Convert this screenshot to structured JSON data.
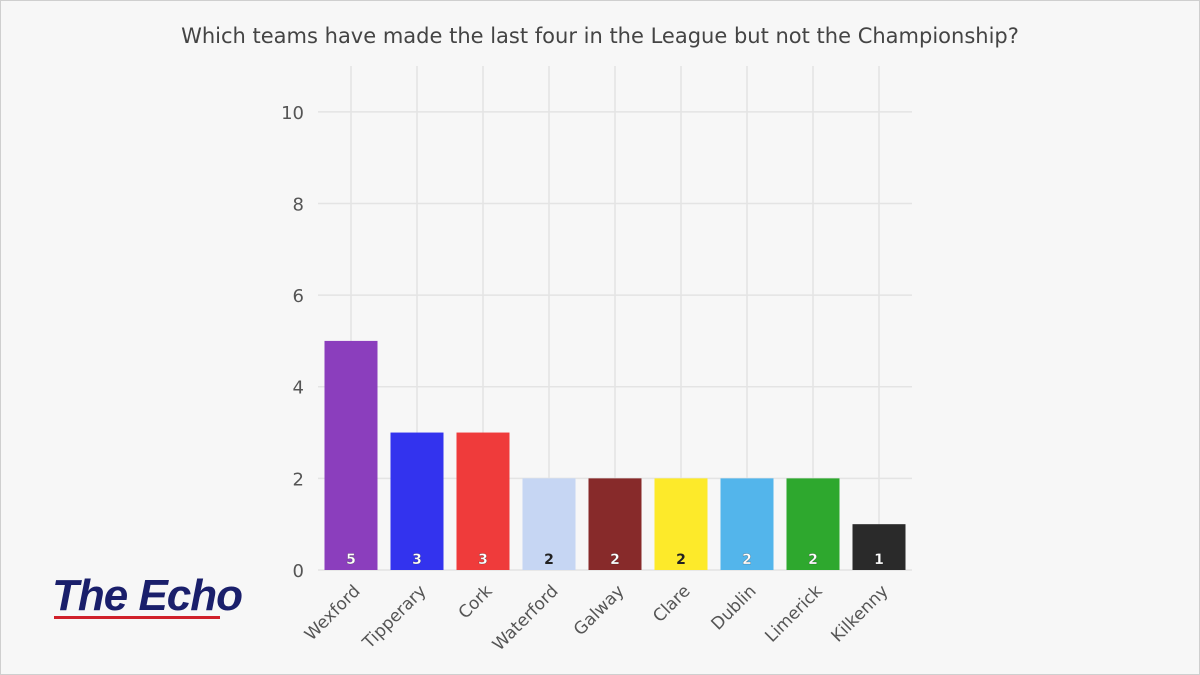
{
  "chart_data": {
    "type": "bar",
    "title": "Which teams have made the last four in the League but not the Championship?",
    "xlabel": "",
    "ylabel": "",
    "ylim": [
      0,
      11
    ],
    "yticks": [
      0,
      2,
      4,
      6,
      8,
      10
    ],
    "grid": true,
    "categories": [
      "Wexford",
      "Tipperary",
      "Cork",
      "Waterford",
      "Galway",
      "Clare",
      "Dublin",
      "Limerick",
      "Kilkenny"
    ],
    "values": [
      5,
      3,
      3,
      2,
      2,
      2,
      2,
      2,
      1
    ],
    "colors": [
      "#8b3ebd",
      "#3333ee",
      "#ef3b3b",
      "#c6d6f3",
      "#872a2a",
      "#fdea2a",
      "#53b5eb",
      "#2ea82e",
      "#2a2a2a"
    ],
    "label_colors": [
      "#ffffff",
      "#ffffff",
      "#ffffff",
      "#222222",
      "#ffffff",
      "#222222",
      "#ffffff",
      "#ffffff",
      "#ffffff"
    ]
  },
  "branding": {
    "logo_text": "The Echo",
    "logo_color": "#1a1f6b",
    "underline_color": "#d0202a"
  }
}
